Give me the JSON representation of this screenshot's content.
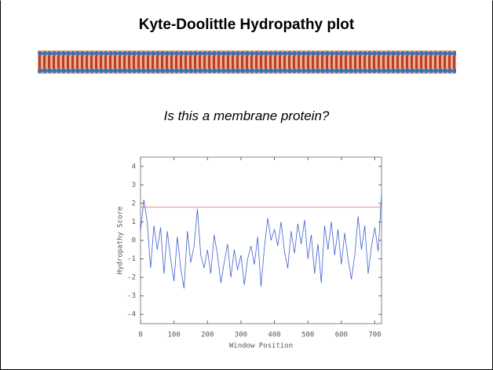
{
  "slide": {
    "title": "Kyte-Doolittle Hydropathy plot",
    "question": "Is this a membrane protein?"
  },
  "chart_data": {
    "type": "line",
    "xlabel": "Window Position",
    "ylabel": "Hydropathy Score",
    "x": [
      0,
      10,
      20,
      30,
      40,
      50,
      60,
      70,
      80,
      90,
      100,
      110,
      120,
      130,
      140,
      150,
      160,
      170,
      180,
      190,
      200,
      210,
      220,
      230,
      240,
      250,
      260,
      270,
      280,
      290,
      300,
      310,
      320,
      330,
      340,
      350,
      360,
      370,
      380,
      390,
      400,
      410,
      420,
      430,
      440,
      450,
      460,
      470,
      480,
      490,
      500,
      510,
      520,
      530,
      540,
      550,
      560,
      570,
      580,
      590,
      600,
      610,
      620,
      630,
      640,
      650,
      660,
      670,
      680,
      690,
      700,
      710,
      720
    ],
    "series": [
      {
        "color": "#3f5fd0",
        "values": [
          0.5,
          2.2,
          1.0,
          -1.5,
          0.8,
          -0.5,
          0.7,
          -1.8,
          0.5,
          -1.0,
          -2.2,
          0.2,
          -1.5,
          -2.6,
          0.5,
          -1.2,
          -0.3,
          1.7,
          -0.8,
          -1.5,
          -0.5,
          -1.8,
          0.3,
          -0.8,
          -2.3,
          -1.2,
          -0.2,
          -2.0,
          -0.5,
          -1.6,
          -0.8,
          -2.4,
          -1.0,
          -0.3,
          -1.3,
          0.2,
          -2.5,
          -0.4,
          1.2,
          0.0,
          0.6,
          -0.3,
          1.0,
          -0.6,
          -1.5,
          0.5,
          -0.7,
          0.9,
          -0.2,
          1.1,
          -1.0,
          0.3,
          -1.8,
          -0.2,
          -2.3,
          0.8,
          -0.5,
          1.0,
          -0.8,
          0.6,
          -1.3,
          0.4,
          -1.0,
          -2.1,
          -0.8,
          1.3,
          -0.5,
          0.8,
          -1.8,
          -0.3,
          0.7,
          -0.6,
          2.5
        ]
      }
    ],
    "threshold": 1.8,
    "threshold_color": "#f0a0a0",
    "xlim": [
      0,
      720
    ],
    "ylim": [
      -4.5,
      4.5
    ],
    "xticks": [
      0,
      100,
      200,
      300,
      400,
      500,
      600,
      700
    ],
    "yticks": [
      -4,
      -3,
      -2,
      -1,
      0,
      1,
      2,
      3,
      4
    ]
  }
}
